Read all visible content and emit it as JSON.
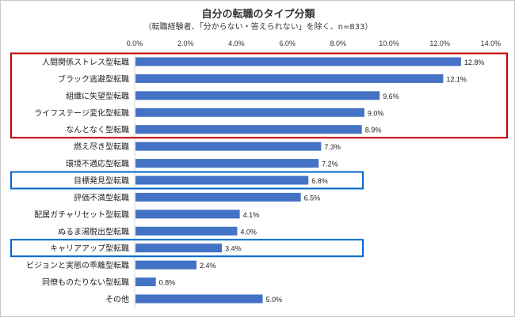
{
  "chart_data": {
    "type": "bar",
    "orientation": "horizontal",
    "title": "自分の転職のタイプ分類",
    "subtitle": "（転職経験者、「分からない・答えられない」を除く、n=833）",
    "categories": [
      "人間関係ストレス型転職",
      "ブラック逃避型転職",
      "組織に失望型転職",
      "ライフステージ変化型転職",
      "なんとなく型転職",
      "燃え尽き型転職",
      "環境不適応型転職",
      "目標発見型転職",
      "評価不満型転職",
      "配属ガチャリセット型転職",
      "ぬるま湯脱出型転職",
      "キャリアアップ型転職",
      "ビジョンと実態の乖離型転職",
      "同僚ものたりない型転職",
      "その他"
    ],
    "values": [
      12.8,
      12.1,
      9.6,
      9.0,
      8.9,
      7.3,
      7.2,
      6.8,
      6.5,
      4.1,
      4.0,
      3.4,
      2.4,
      0.8,
      5.0
    ],
    "value_labels": [
      "12.8%",
      "12.1%",
      "9.6%",
      "9.0%",
      "8.9%",
      "7.3%",
      "7.2%",
      "6.8%",
      "6.5%",
      "4.1%",
      "4.0%",
      "3.4%",
      "2.4%",
      "0.8%",
      "5.0%"
    ],
    "xlim": [
      0,
      14
    ],
    "x_ticks": [
      "0.0%",
      "2.0%",
      "4.0%",
      "6.0%",
      "8.0%",
      "10.0%",
      "12.0%",
      "14.0%"
    ],
    "axis_position": "top",
    "grid": false,
    "bar_color": "#4472C4",
    "highlights": [
      {
        "color": "#C00000",
        "categories": [
          0,
          1,
          2,
          3,
          4
        ],
        "extends_past_values": true
      },
      {
        "color": "#0066CC",
        "categories": [
          7
        ]
      },
      {
        "color": "#0066CC",
        "categories": [
          11
        ]
      }
    ]
  }
}
